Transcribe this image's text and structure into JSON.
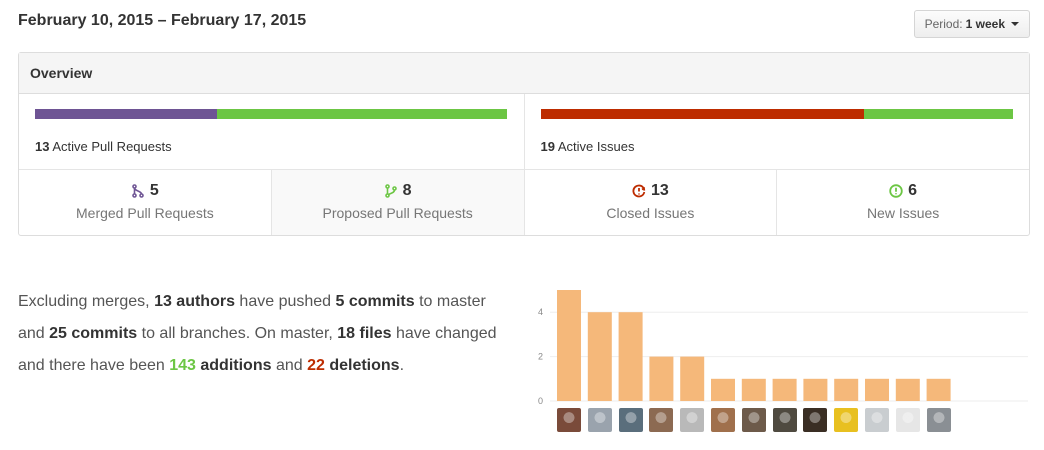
{
  "header": {
    "date_range": "February 10, 2015 – February 17, 2015",
    "period_label": "Period:",
    "period_value": "1 week"
  },
  "overview": {
    "title": "Overview",
    "pull_requests": {
      "count": "13",
      "label": "Active Pull Requests",
      "merged_fraction": 0.385,
      "merged_color": "#6e5494",
      "proposed_color": "#6cc644"
    },
    "issues": {
      "count": "19",
      "label": "Active Issues",
      "closed_fraction": 0.684,
      "closed_color": "#bd2c00",
      "new_color": "#6cc644"
    },
    "stats": [
      {
        "icon": "git-merge-icon",
        "value": "5",
        "label": "Merged Pull Requests",
        "color": "#6e5494"
      },
      {
        "icon": "git-pull-request-icon",
        "value": "8",
        "label": "Proposed Pull Requests",
        "color": "#6cc644"
      },
      {
        "icon": "issue-closed-icon",
        "value": "13",
        "label": "Closed Issues",
        "color": "#bd2c00"
      },
      {
        "icon": "issue-opened-icon",
        "value": "6",
        "label": "New Issues",
        "color": "#6cc644"
      }
    ]
  },
  "summary": {
    "t1": "Excluding merges, ",
    "authors": "13 authors",
    "t2": " have pushed ",
    "commits_master": "5 commits",
    "t3": " to master and ",
    "commits_all": "25 commits",
    "t4": " to all branches. On master, ",
    "files": "18 files",
    "t5": " have changed and there have been ",
    "additions_num": "143",
    "additions_word": " additions",
    "t6": " and ",
    "deletions_num": "22",
    "deletions_word": " deletions",
    "t7": "."
  },
  "chart_data": {
    "type": "bar",
    "categories": [
      "author-1",
      "author-2",
      "author-3",
      "author-4",
      "author-5",
      "author-6",
      "author-7",
      "author-8",
      "author-9",
      "author-10",
      "author-11",
      "author-12",
      "author-13"
    ],
    "values": [
      5,
      4,
      4,
      2,
      2,
      1,
      1,
      1,
      1,
      1,
      1,
      1,
      1
    ],
    "yticks": [
      "0",
      "2",
      "4"
    ],
    "ylim": [
      0,
      5
    ],
    "bar_color": "#f5b87a",
    "grid": true,
    "avatar_colors": [
      "#7a4b3a",
      "#9aa3ad",
      "#5a6e7c",
      "#8c6a52",
      "#b9b9b9",
      "#a0704c",
      "#6d5a4a",
      "#4f4a40",
      "#3a2e24",
      "#e8c020",
      "#c9cdd0",
      "#e6e6e6",
      "#8a8f94"
    ]
  }
}
